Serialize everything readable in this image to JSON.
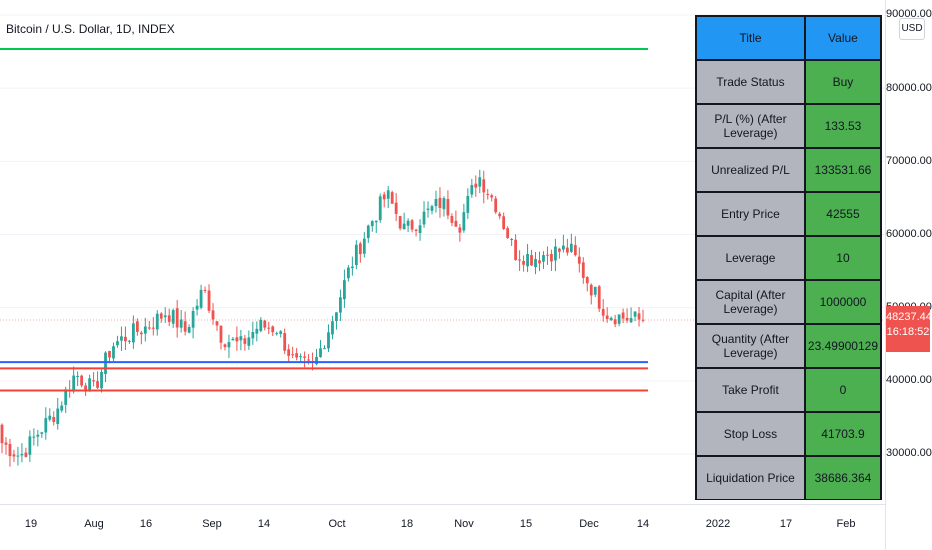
{
  "header": {
    "symbol_title": "Bitcoin / U.S. Dollar, 1D, INDEX"
  },
  "price_scale": {
    "currency_button": "USD",
    "ticks": [
      "90000.00",
      "80000.00",
      "70000.00",
      "60000.00",
      "50000.00",
      "40000.00",
      "30000.00"
    ],
    "last_price": "48237.44",
    "countdown": "16:18:52"
  },
  "time_axis": {
    "ticks": [
      "19",
      "Aug",
      "16",
      "Sep",
      "14",
      "Oct",
      "18",
      "Nov",
      "15",
      "Dec",
      "14",
      "2022",
      "17",
      "Feb"
    ]
  },
  "info_table": {
    "header": {
      "title": "Title",
      "value": "Value"
    },
    "rows": [
      {
        "title": "Trade Status",
        "value": "Buy"
      },
      {
        "title": "P/L (%) (After Leverage)",
        "value": "133.53"
      },
      {
        "title": "Unrealized P/L",
        "value": "133531.66"
      },
      {
        "title": "Entry Price",
        "value": "42555"
      },
      {
        "title": "Leverage",
        "value": "10"
      },
      {
        "title": "Capital (After Leverage)",
        "value": "1000000"
      },
      {
        "title": "Quantity (After Leverage)",
        "value": "23.49900129"
      },
      {
        "title": "Take Profit",
        "value": "0"
      },
      {
        "title": "Stop Loss",
        "value": "41703.9"
      },
      {
        "title": "Liquidation Price",
        "value": "38686.364"
      }
    ]
  },
  "colors": {
    "up": "#26a69a",
    "down": "#ef5350",
    "take_profit_line": "#00c853",
    "entry_line": "#2962ff",
    "stop_line": "#f44336",
    "table_header": "#2196f3",
    "table_key": "#b2b5be",
    "table_value": "#4caf50"
  },
  "chart_data": {
    "type": "candlestick",
    "symbol": "Bitcoin / U.S. Dollar",
    "interval": "1D",
    "ylim": [
      25000,
      91000
    ],
    "close_path": [
      31500,
      29700,
      33000,
      36000,
      41000,
      38700,
      44800,
      46400,
      47500,
      49500,
      46800,
      52500,
      46000,
      44800,
      47500,
      47200,
      42300,
      41800,
      48200,
      55500,
      61000,
      65500,
      60500,
      62500,
      64500,
      61500,
      68200,
      64000,
      57500,
      56800,
      57600,
      58000,
      53500,
      49300,
      48600,
      48237
    ],
    "horizontal_lines": [
      {
        "label": "Take Profit",
        "value": 0
      },
      {
        "label": "Entry Price",
        "value": 42555
      },
      {
        "label": "Stop Loss",
        "value": 41703.9
      },
      {
        "label": "Liquidation Price",
        "value": 38686.364
      }
    ],
    "last_price": 48237.44
  }
}
